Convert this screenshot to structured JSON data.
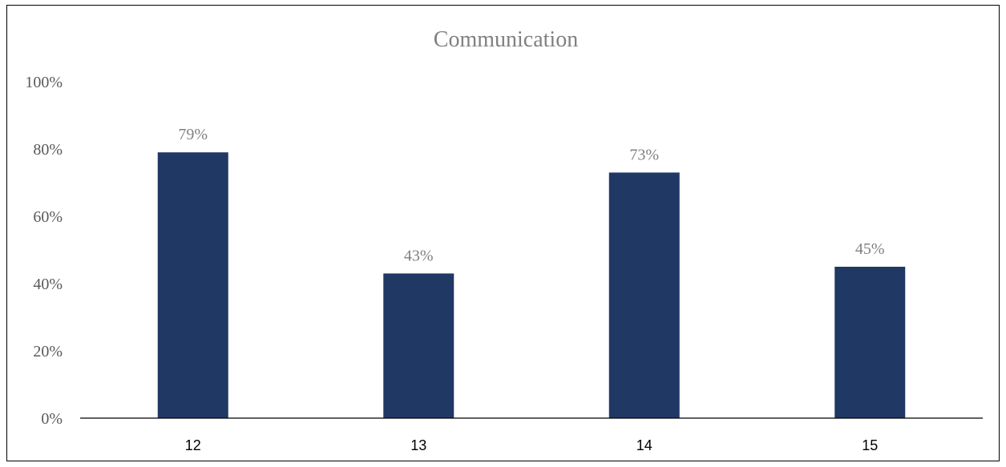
{
  "chart_data": {
    "type": "bar",
    "title": "Communication",
    "xlabel": "",
    "ylabel": "",
    "categories": [
      "12",
      "13",
      "14",
      "15"
    ],
    "values": [
      79,
      43,
      73,
      45
    ],
    "value_labels": [
      "79%",
      "43%",
      "73%",
      "45%"
    ],
    "yticks": [
      "0%",
      "20%",
      "40%",
      "60%",
      "80%",
      "100%"
    ],
    "ylim": [
      0,
      100
    ],
    "grid": false,
    "legend": "none"
  },
  "colors": {
    "bar": "#203864",
    "title": "#808080",
    "tick_label": "#595959",
    "value_label": "#808080",
    "axis": "#000000"
  }
}
